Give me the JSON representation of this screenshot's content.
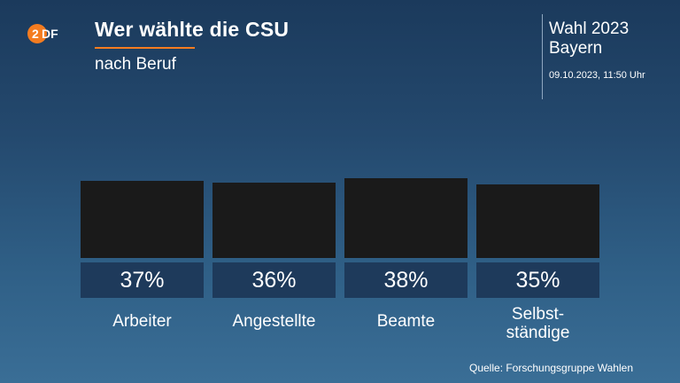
{
  "header": {
    "logo_text": "ZDF",
    "title": "Wer wählte die CSU",
    "subtitle": "nach Beruf",
    "event_line1": "Wahl 2023",
    "event_line2": "Bayern",
    "timestamp": "09.10.2023, 11:50 Uhr"
  },
  "footer": {
    "source": "Quelle: Forschungsgruppe Wahlen"
  },
  "colors": {
    "accent": "#f47c20",
    "bar": "#1a1a1a",
    "value_box": "#1e3a5b"
  },
  "chart_data": {
    "type": "bar",
    "title": "Wer wählte die CSU",
    "subtitle": "nach Beruf",
    "categories": [
      "Arbeiter",
      "Angestellte",
      "Beamte",
      "Selbst-\nständige"
    ],
    "values": [
      37,
      36,
      38,
      35
    ],
    "value_labels": [
      "37%",
      "36%",
      "38%",
      "35%"
    ],
    "unit": "%",
    "legend": "none",
    "grid": false
  }
}
